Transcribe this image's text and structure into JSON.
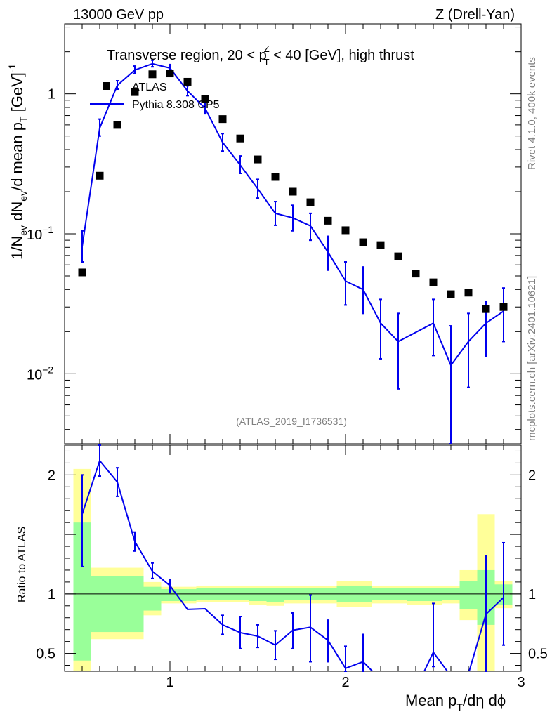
{
  "chart_data": {
    "type": "scatter",
    "header": {
      "left": "13000 GeV pp",
      "right": "Z (Drell-Yan)"
    },
    "title": "Transverse region, 20 < pT^Z < 40 [GeV], high thrust",
    "title_parts": {
      "before": "Transverse region, 20 < p",
      "sup": "Z",
      "sub": "T",
      "after": " < 40 [GeV], high thrust"
    },
    "ylabel_parts": {
      "a": "1/N",
      "a_sub": "ev",
      "b": " dN",
      "b_sub": "ev",
      "c": "/d mean p",
      "c_sub": "T",
      "d": " [GeV]",
      "d_sup": "-1"
    },
    "xlabel_parts": {
      "a": "Mean p",
      "a_sub": "T",
      "b": "/dη dϕ"
    },
    "ratio_ylabel": "Ratio to ATLAS",
    "analysis_id": "(ATLAS_2019_I1736531)",
    "side_text_top": "Rivet 4.1.0,  400k events",
    "side_text_bottom": "mcplots.cern.ch [arXiv:2401.10621]",
    "legend": [
      {
        "name": "ATLAS",
        "marker": "square",
        "color": "#000000"
      },
      {
        "name": "Pythia 8.308 CP5",
        "marker": "line",
        "color": "#0000ee"
      }
    ],
    "xlim": [
      0.4,
      3.0
    ],
    "main_ylim_log10": [
      -2.5,
      0.5
    ],
    "ratio_ylim": [
      0.35,
      2.25
    ],
    "x_ticks_labeled": [
      {
        "v": 1,
        "label": "1"
      },
      {
        "v": 2,
        "label": "2"
      },
      {
        "v": 3,
        "label": "3"
      }
    ],
    "y_ticks_main": [
      {
        "e": 1,
        "label": "10"
      },
      {
        "e": 0,
        "label": "1"
      },
      {
        "e": -1,
        "base": "10",
        "exp": "−1"
      },
      {
        "e": -2,
        "base": "10",
        "exp": "−2"
      }
    ],
    "y_ticks_ratio": [
      {
        "v": 0.5,
        "label": "0.5"
      },
      {
        "v": 1,
        "label": "1"
      },
      {
        "v": 2,
        "label": "2"
      }
    ],
    "x": [
      0.5,
      0.6,
      0.7,
      0.8,
      0.9,
      1.0,
      1.1,
      1.2,
      1.3,
      1.4,
      1.5,
      1.6,
      1.7,
      1.8,
      1.9,
      2.0,
      2.1,
      2.2,
      2.3,
      2.4,
      2.5,
      2.6,
      2.7,
      2.8,
      2.9
    ],
    "series": [
      {
        "name": "ATLAS",
        "values": [
          0.053,
          0.26,
          0.6,
          1.03,
          1.38,
          1.4,
          1.22,
          0.92,
          0.66,
          0.48,
          0.34,
          0.255,
          0.2,
          0.168,
          0.124,
          0.106,
          0.087,
          0.083,
          0.069,
          0.052,
          0.045,
          0.037,
          0.038,
          0.029,
          0.03
        ]
      },
      {
        "name": "Pythia 8.308 CP5",
        "values": [
          0.081,
          0.57,
          1.15,
          1.48,
          1.64,
          1.53,
          1.05,
          0.79,
          0.45,
          0.31,
          0.21,
          0.14,
          0.13,
          0.114,
          0.074,
          0.046,
          0.04,
          0.023,
          0.017,
          null,
          0.023,
          0.0115,
          0.017,
          0.023,
          0.028
        ],
        "err_low": [
          0.063,
          0.5,
          1.08,
          1.4,
          1.56,
          1.45,
          0.97,
          0.72,
          0.39,
          0.27,
          0.18,
          0.115,
          0.105,
          0.09,
          0.055,
          0.031,
          0.027,
          0.0128,
          0.0078,
          null,
          0.0135,
          0.0031,
          0.008,
          0.0133,
          0.017
        ],
        "err_high": [
          0.105,
          0.66,
          1.24,
          1.58,
          1.74,
          1.62,
          1.14,
          0.88,
          0.52,
          0.36,
          0.245,
          0.17,
          0.16,
          0.14,
          0.096,
          0.063,
          0.058,
          0.034,
          0.027,
          null,
          0.034,
          0.022,
          0.027,
          0.033,
          0.041
        ]
      }
    ],
    "ratio": {
      "values": [
        1.67,
        2.12,
        1.94,
        1.44,
        1.19,
        1.07,
        0.87,
        0.875,
        0.74,
        0.675,
        0.645,
        0.57,
        0.695,
        0.72,
        0.61,
        0.375,
        0.43,
        0.28,
        0.25,
        0.2,
        0.51,
        0.31,
        0.33,
        0.83,
        0.97
      ],
      "err_low": [
        1.23,
        1.99,
        1.82,
        1.36,
        1.13,
        1.01,
        null,
        null,
        0.66,
        0.54,
        0.55,
        0.45,
        0.54,
        0.43,
        0.43,
        0.28,
        0.28,
        null,
        null,
        null,
        0.39,
        null,
        null,
        0.33,
        0.57
      ],
      "err_high": [
        2.0,
        2.25,
        2.06,
        1.52,
        1.26,
        1.12,
        null,
        null,
        0.82,
        0.81,
        0.74,
        0.69,
        0.84,
        0.99,
        0.78,
        0.56,
        0.66,
        null,
        null,
        null,
        0.92,
        null,
        null,
        1.32,
        1.43
      ],
      "band_x": [
        0.45,
        0.55,
        0.75,
        0.85,
        0.95,
        1.05,
        1.15,
        1.25,
        1.35,
        1.45,
        1.55,
        1.65,
        1.75,
        1.85,
        1.95,
        2.05,
        2.15,
        2.25,
        2.35,
        2.45,
        2.55,
        2.65,
        2.75,
        2.85,
        2.95
      ],
      "band_stat": [
        [
          0.44,
          1.6
        ],
        [
          0.68,
          1.15
        ],
        [
          0.68,
          1.15
        ],
        [
          0.86,
          1.06
        ],
        [
          0.94,
          1.04
        ],
        [
          0.94,
          1.04
        ],
        [
          0.95,
          1.05
        ],
        [
          0.95,
          1.05
        ],
        [
          0.95,
          1.05
        ],
        [
          0.94,
          1.05
        ],
        [
          0.93,
          1.05
        ],
        [
          0.95,
          1.05
        ],
        [
          0.95,
          1.05
        ],
        [
          0.95,
          1.05
        ],
        [
          0.93,
          1.07
        ],
        [
          0.93,
          1.07
        ],
        [
          0.95,
          1.05
        ],
        [
          0.95,
          1.05
        ],
        [
          0.94,
          1.05
        ],
        [
          0.94,
          1.05
        ],
        [
          0.95,
          1.05
        ],
        [
          0.87,
          1.11
        ],
        [
          0.74,
          1.2
        ],
        [
          0.91,
          1.08
        ],
        [
          0.91,
          1.08
        ]
      ],
      "band_total": [
        [
          0.35,
          2.05
        ],
        [
          0.62,
          1.22
        ],
        [
          0.62,
          1.22
        ],
        [
          0.82,
          1.1
        ],
        [
          0.92,
          1.06
        ],
        [
          0.92,
          1.06
        ],
        [
          0.93,
          1.07
        ],
        [
          0.93,
          1.07
        ],
        [
          0.93,
          1.07
        ],
        [
          0.91,
          1.07
        ],
        [
          0.9,
          1.07
        ],
        [
          0.92,
          1.07
        ],
        [
          0.92,
          1.07
        ],
        [
          0.92,
          1.07
        ],
        [
          0.89,
          1.11
        ],
        [
          0.89,
          1.11
        ],
        [
          0.92,
          1.07
        ],
        [
          0.92,
          1.07
        ],
        [
          0.91,
          1.07
        ],
        [
          0.91,
          1.07
        ],
        [
          0.92,
          1.07
        ],
        [
          0.78,
          1.2
        ],
        [
          0.35,
          1.67
        ],
        [
          0.88,
          1.11
        ],
        [
          0.88,
          1.11
        ]
      ]
    }
  }
}
